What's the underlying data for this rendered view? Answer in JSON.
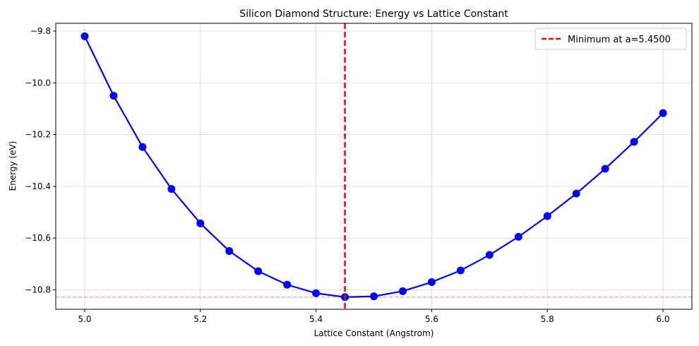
{
  "chart_data": {
    "type": "line",
    "title": "Silicon Diamond Structure: Energy vs Lattice Constant",
    "xlabel": "Lattice Constant (Angstrom)",
    "ylabel": "Energy (eV)",
    "xlim": [
      4.95,
      6.05
    ],
    "ylim": [
      -10.875,
      -9.77
    ],
    "xticks": [
      5.0,
      5.2,
      5.4,
      5.6,
      5.8,
      6.0
    ],
    "xtick_labels": [
      "5.0",
      "5.2",
      "5.4",
      "5.6",
      "5.8",
      "6.0"
    ],
    "yticks": [
      -9.8,
      -10.0,
      -10.2,
      -10.4,
      -10.6,
      -10.8
    ],
    "ytick_labels": [
      "−9.8",
      "−10.0",
      "−10.2",
      "−10.4",
      "−10.6",
      "−10.8"
    ],
    "grid": true,
    "legend_position": "top-right",
    "series": [
      {
        "color": "#0000ff",
        "marker": "circle",
        "x": [
          5.0,
          5.05,
          5.1,
          5.15,
          5.2,
          5.25,
          5.3,
          5.35,
          5.4,
          5.45,
          5.5,
          5.55,
          5.6,
          5.65,
          5.7,
          5.75,
          5.8,
          5.85,
          5.9,
          5.95,
          6.0
        ],
        "y": [
          -9.82,
          -10.05,
          -10.248,
          -10.41,
          -10.543,
          -10.65,
          -10.728,
          -10.78,
          -10.813,
          -10.828,
          -10.825,
          -10.805,
          -10.77,
          -10.725,
          -10.665,
          -10.595,
          -10.515,
          -10.428,
          -10.332,
          -10.228,
          -10.117
        ]
      }
    ],
    "vline": {
      "x": 5.45,
      "color": "#ff0000",
      "label": "Minimum at a=5.4500"
    },
    "hline": {
      "y": -10.828,
      "color": "#ff0000"
    }
  }
}
